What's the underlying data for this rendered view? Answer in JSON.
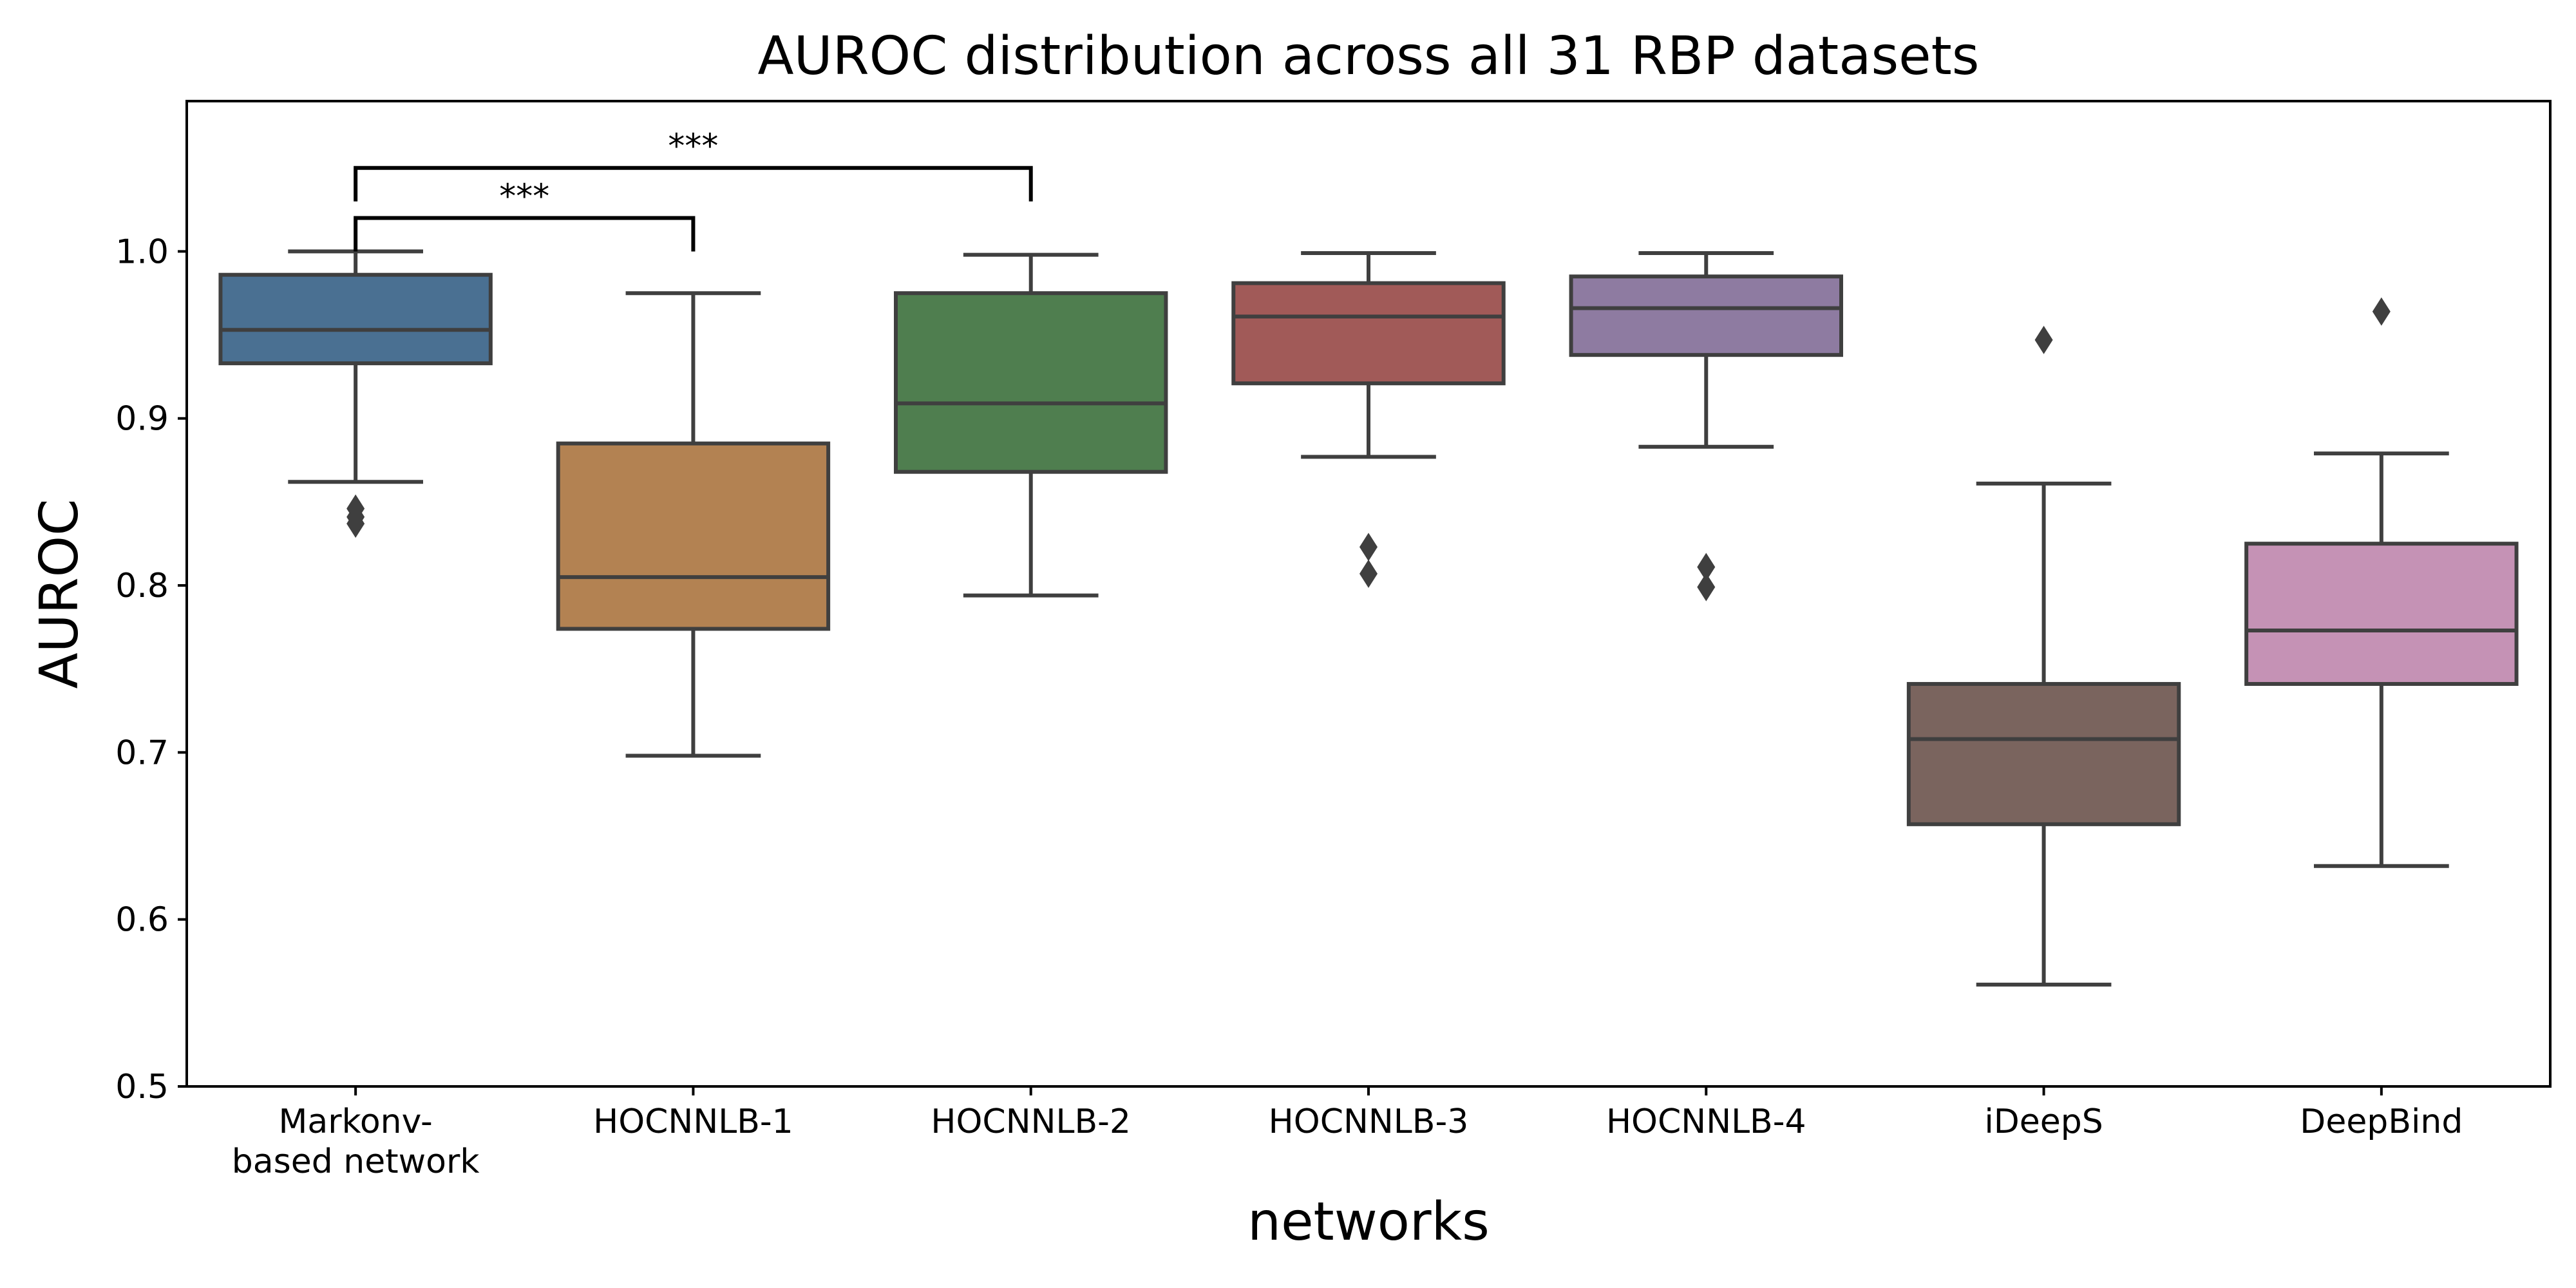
{
  "chart_data": {
    "type": "box",
    "title": "AUROC distribution across all 31 RBP datasets",
    "xlabel": "networks",
    "ylabel": "AUROC",
    "ylim": [
      0.5,
      1.09
    ],
    "yticks": [
      "0.5",
      "0.6",
      "0.7",
      "0.8",
      "0.9",
      "1.0"
    ],
    "grid": false,
    "categories": [
      {
        "label_lines": [
          "Markonv-",
          "based network"
        ],
        "color": "#4a7092"
      },
      {
        "label_lines": [
          "HOCNNLB-1"
        ],
        "color": "#b38252"
      },
      {
        "label_lines": [
          "HOCNNLB-2"
        ],
        "color": "#4f7e4f"
      },
      {
        "label_lines": [
          "HOCNNLB-3"
        ],
        "color": "#a15a58"
      },
      {
        "label_lines": [
          "HOCNNLB-4"
        ],
        "color": "#8e7ba1"
      },
      {
        "label_lines": [
          "iDeepS"
        ],
        "color": "#7a645e"
      },
      {
        "label_lines": [
          "DeepBind"
        ],
        "color": "#c592b5"
      }
    ],
    "boxes": [
      {
        "whisker_low": 0.862,
        "q1": 0.933,
        "median": 0.953,
        "q3": 0.986,
        "whisker_high": 1.0,
        "outliers": [
          0.837,
          0.841,
          0.846
        ]
      },
      {
        "whisker_low": 0.698,
        "q1": 0.774,
        "median": 0.805,
        "q3": 0.885,
        "whisker_high": 0.975,
        "outliers": []
      },
      {
        "whisker_low": 0.794,
        "q1": 0.868,
        "median": 0.909,
        "q3": 0.975,
        "whisker_high": 0.998,
        "outliers": []
      },
      {
        "whisker_low": 0.877,
        "q1": 0.921,
        "median": 0.961,
        "q3": 0.981,
        "whisker_high": 0.999,
        "outliers": [
          0.807,
          0.823
        ]
      },
      {
        "whisker_low": 0.883,
        "q1": 0.938,
        "median": 0.966,
        "q3": 0.985,
        "whisker_high": 0.999,
        "outliers": [
          0.799,
          0.811
        ]
      },
      {
        "whisker_low": 0.561,
        "q1": 0.657,
        "median": 0.708,
        "q3": 0.741,
        "whisker_high": 0.861,
        "outliers": [
          0.947
        ]
      },
      {
        "whisker_low": 0.632,
        "q1": 0.741,
        "median": 0.773,
        "q3": 0.825,
        "whisker_high": 0.879,
        "outliers": [
          0.964
        ]
      }
    ],
    "annotations": [
      {
        "from": 0,
        "to": 1,
        "label": "***",
        "y": 1.02
      },
      {
        "from": 0,
        "to": 2,
        "label": "***",
        "y": 1.05
      }
    ]
  }
}
